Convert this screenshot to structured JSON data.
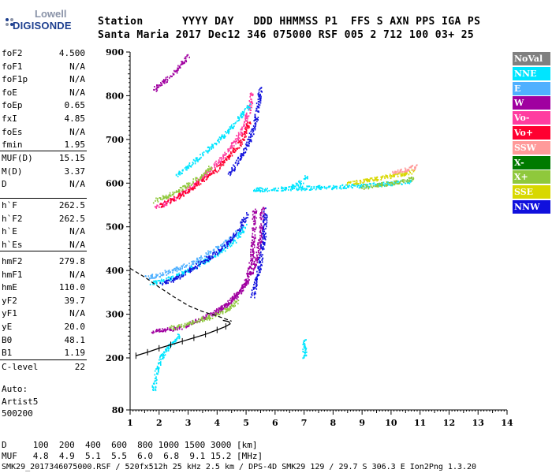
{
  "logo": {
    "line1": "Lowell",
    "line2": "DIGISONDE"
  },
  "header": {
    "labels_line": "Station      YYYY DAY   DDD HHMMSS P1  FFS S AXN PPS IGA PS",
    "values_line": "Santa Maria 2017 Dec12 346 075000 RSF 005 2 712 100 03+ 25"
  },
  "params": {
    "group1": [
      {
        "label": "foF2",
        "value": "4.500"
      },
      {
        "label": "foF1",
        "value": "N/A"
      },
      {
        "label": "foF1p",
        "value": "N/A"
      },
      {
        "label": "foE",
        "value": "N/A"
      },
      {
        "label": "foEp",
        "value": "0.65"
      },
      {
        "label": "fxI",
        "value": "4.85"
      },
      {
        "label": "foEs",
        "value": "N/A"
      },
      {
        "label": "fmin",
        "value": "1.95"
      }
    ],
    "group2": [
      {
        "label": "MUF(D)",
        "value": "15.15"
      },
      {
        "label": "M(D)",
        "value": "3.37"
      },
      {
        "label": "D",
        "value": "N/A"
      }
    ],
    "group3": [
      {
        "label": "h`F",
        "value": "262.5"
      },
      {
        "label": "h`F2",
        "value": "262.5"
      },
      {
        "label": "h`E",
        "value": "N/A"
      },
      {
        "label": "h`Es",
        "value": "N/A"
      }
    ],
    "group4": [
      {
        "label": "hmF2",
        "value": "279.8"
      },
      {
        "label": "hmF1",
        "value": "N/A"
      },
      {
        "label": "hmE",
        "value": "110.0"
      },
      {
        "label": "yF2",
        "value": "39.7"
      },
      {
        "label": "yF1",
        "value": "N/A"
      },
      {
        "label": "yE",
        "value": "20.0"
      },
      {
        "label": "B0",
        "value": "48.1"
      },
      {
        "label": "B1",
        "value": "1.19"
      }
    ],
    "group5": [
      {
        "label": "C-level",
        "value": "22"
      }
    ],
    "auto_label": "Auto:",
    "artist": "Artist5",
    "code": "500200"
  },
  "legend": [
    {
      "label": "NoVal",
      "color": "#808080"
    },
    {
      "label": "NNE",
      "color": "#00e5ff"
    },
    {
      "label": "E",
      "color": "#4fb0ff"
    },
    {
      "label": "W",
      "color": "#a000a0"
    },
    {
      "label": "Vo-",
      "color": "#ff3ca0"
    },
    {
      "label": "Vo+",
      "color": "#ff0030"
    },
    {
      "label": "SSW",
      "color": "#ff9a9a"
    },
    {
      "label": "X-",
      "color": "#007a00"
    },
    {
      "label": "X+",
      "color": "#8fc83c"
    },
    {
      "label": "SSE",
      "color": "#d8d800"
    },
    {
      "label": "NNW",
      "color": "#1010dd"
    }
  ],
  "footer": {
    "d_line": "D     100  200  400  600  800 1000 1500 3000 [km]",
    "muf_line": "MUF   4.8  4.9  5.1  5.5  6.0  6.8  9.1 15.2 [MHz]",
    "info_line": "SMK29_2017346075000.RSF / 520fx512h 25 kHz 2.5 km / DPS-4D SMK29 129 / 29.7 S 306.3 E Ion2Png 1.3.20"
  },
  "chart_data": {
    "type": "scatter",
    "xlabel": "",
    "ylabel": "",
    "xlim": [
      1,
      14
    ],
    "ylim": [
      80,
      900
    ],
    "x_ticks": [
      1,
      2,
      3,
      4,
      5,
      6,
      7,
      8,
      9,
      10,
      11,
      12,
      13,
      14
    ],
    "y_ticks": [
      80,
      200,
      300,
      400,
      500,
      600,
      700,
      800,
      900
    ],
    "x_tick_labels": [
      "1",
      "2",
      "3",
      "4",
      "5",
      "6",
      "7",
      "8",
      "9",
      "10",
      "11",
      "12",
      "13",
      "14"
    ],
    "y_tick_labels": [
      "80",
      "200",
      "300",
      "400",
      "500",
      "600",
      "700",
      "800",
      "900"
    ],
    "grid": false,
    "legend_position": "right",
    "traces": [
      {
        "series": "W",
        "x": [
          1.7,
          2.0,
          2.4,
          2.8,
          3.2,
          3.6,
          4.0,
          4.4,
          4.7,
          4.95,
          5.1,
          5.2,
          5.25,
          5.28
        ],
        "y": [
          262,
          264,
          267,
          273,
          283,
          295,
          308,
          325,
          345,
          370,
          400,
          440,
          490,
          540
        ]
      },
      {
        "series": "W",
        "x": [
          3.8,
          4.2,
          4.6,
          4.95,
          5.2,
          5.4,
          5.5,
          5.55
        ],
        "y": [
          300,
          318,
          342,
          370,
          400,
          440,
          490,
          545
        ]
      },
      {
        "series": "NNW",
        "x": [
          5.2,
          5.35,
          5.5,
          5.6,
          5.65
        ],
        "y": [
          340,
          380,
          430,
          480,
          540
        ]
      },
      {
        "series": "X+",
        "x": [
          2.4,
          2.8,
          3.2,
          3.6,
          4.0,
          4.4,
          4.7
        ],
        "y": [
          270,
          276,
          284,
          292,
          302,
          315,
          332
        ]
      },
      {
        "series": "Vo-",
        "x": [
          1.8,
          2.2,
          2.6,
          3.0,
          3.4,
          3.8,
          4.2,
          4.6,
          4.9,
          5.1,
          5.2
        ],
        "y": [
          545,
          555,
          570,
          588,
          610,
          635,
          662,
          695,
          730,
          770,
          810
        ]
      },
      {
        "series": "Vo+",
        "x": [
          2.0,
          2.5,
          3.0,
          3.5,
          4.0,
          4.5,
          4.9,
          5.1
        ],
        "y": [
          550,
          565,
          585,
          608,
          635,
          668,
          705,
          745
        ]
      },
      {
        "series": "NNW",
        "x": [
          4.4,
          4.8,
          5.1,
          5.3,
          5.4,
          5.5
        ],
        "y": [
          620,
          660,
          700,
          740,
          780,
          820
        ]
      },
      {
        "series": "X+",
        "x": [
          1.8,
          2.3,
          2.8,
          3.3,
          3.8
        ],
        "y": [
          560,
          572,
          590,
          612,
          638
        ]
      },
      {
        "series": "NNE",
        "x": [
          2.6,
          3.2,
          3.8,
          4.4,
          4.8,
          5.1
        ],
        "y": [
          620,
          650,
          685,
          722,
          755,
          780
        ]
      },
      {
        "series": "W",
        "x": [
          1.8,
          2.1,
          2.4,
          2.7,
          3.0
        ],
        "y": [
          815,
          830,
          848,
          868,
          892
        ]
      },
      {
        "series": "E",
        "x": [
          1.5,
          2.0,
          2.6,
          3.2,
          3.8,
          4.4,
          4.9
        ],
        "y": [
          385,
          392,
          405,
          420,
          445,
          470,
          500
        ]
      },
      {
        "series": "NNE",
        "x": [
          1.7,
          2.2,
          2.8,
          3.4,
          4.0,
          4.6,
          5.0
        ],
        "y": [
          372,
          380,
          395,
          415,
          440,
          470,
          505
        ]
      },
      {
        "series": "NNW",
        "x": [
          2.0,
          2.5,
          3.0,
          3.6,
          4.2,
          4.7,
          5.0
        ],
        "y": [
          370,
          382,
          400,
          425,
          455,
          490,
          530
        ]
      },
      {
        "series": "NNE",
        "x": [
          5.2,
          6.0,
          7.0,
          8.0,
          9.0,
          10.0,
          10.7
        ],
        "y": [
          586,
          588,
          590,
          592,
          596,
          600,
          606
        ]
      },
      {
        "series": "SSE",
        "x": [
          8.5,
          9.2,
          9.8,
          10.3,
          10.8
        ],
        "y": [
          600,
          608,
          615,
          622,
          628
        ]
      },
      {
        "series": "X+",
        "x": [
          9.0,
          9.6,
          10.2,
          10.8
        ],
        "y": [
          592,
          598,
          604,
          612
        ]
      },
      {
        "series": "SSW",
        "x": [
          10.0,
          10.5,
          10.9
        ],
        "y": [
          625,
          632,
          640
        ]
      },
      {
        "series": "NNE",
        "x": [
          6.5,
          6.8,
          7.0,
          7.1
        ],
        "y": [
          590,
          600,
          610,
          620
        ]
      },
      {
        "series": "NNE",
        "x": [
          7.0,
          7.0,
          7.0,
          7.0,
          7.0
        ],
        "y": [
          200,
          210,
          220,
          230,
          245
        ]
      },
      {
        "series": "NNE",
        "x": [
          1.8,
          1.9,
          2.1,
          2.4,
          2.7
        ],
        "y": [
          130,
          170,
          210,
          230,
          255
        ]
      }
    ],
    "profile_dashed": {
      "x": [
        1.0,
        1.5,
        2.0,
        2.5,
        3.0,
        3.5,
        4.0,
        4.3,
        4.5
      ],
      "y": [
        405,
        385,
        362,
        340,
        320,
        306,
        296,
        289,
        284
      ]
    },
    "profile_solid": {
      "x": [
        1.2,
        1.6,
        2.0,
        2.4,
        2.8,
        3.2,
        3.6,
        4.0,
        4.3,
        4.45,
        4.4,
        4.2
      ],
      "y": [
        205,
        213,
        222,
        230,
        238,
        246,
        254,
        264,
        272,
        278,
        283,
        286
      ]
    }
  }
}
